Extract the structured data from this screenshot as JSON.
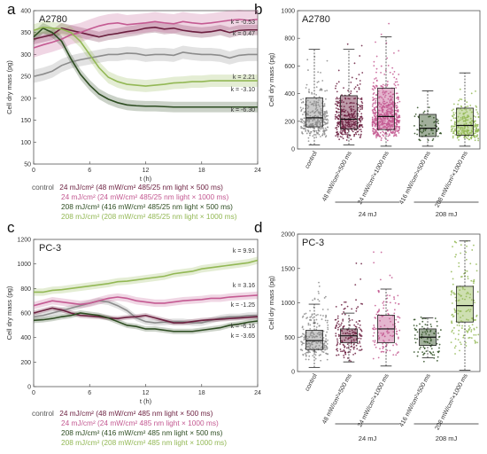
{
  "panels": {
    "a": "a",
    "b": "b",
    "c": "c",
    "d": "d"
  },
  "colors": {
    "control": "#8c8c8c",
    "s48": "#6b1f3f",
    "s24": "#c45a92",
    "s416": "#2e4d22",
    "s208": "#93b855"
  },
  "legend_a": {
    "control": "control",
    "s48": "24 mJ/cm² (48 mW/cm² 485/25 nm light × 500 ms)",
    "s24": "24 mJ/cm² (24 mW/cm² 485/25 nm light × 1000 ms)",
    "s416": "208 mJ/cm² (416 mW/cm² 485/25 nm light × 500 ms)",
    "s208": "208 mJ/cm² (208 mW/cm² 485/25 nm light × 1000 ms)"
  },
  "legend_c": {
    "control": "control",
    "s48": "24 mJ/cm² (48 mW/cm² 485 nm light × 500 ms)",
    "s24": "24 mJ/cm² (24 mW/cm² 485 nm light × 1000 ms)",
    "s416": "208 mJ/cm² (416 mW/cm² 485 nm light × 500 ms)",
    "s208": "208 mJ/cm² (208 mW/cm² 485 nm light × 1000 ms)"
  },
  "chart_data": [
    {
      "id": "a",
      "type": "line",
      "title": "A2780",
      "xlabel": "t (h)",
      "ylabel": "Cell dry mass (pg)",
      "xlim": [
        0,
        24
      ],
      "ylim": [
        50,
        400
      ],
      "xticks": [
        0,
        6,
        12,
        18,
        24
      ],
      "yticks": [
        50,
        100,
        150,
        200,
        250,
        300,
        350,
        400
      ],
      "series": [
        {
          "key": "control",
          "x": [
            0,
            1,
            2,
            3,
            4,
            5,
            6,
            7,
            8,
            9,
            10,
            11,
            12,
            13,
            14,
            15,
            16,
            17,
            18,
            19,
            20,
            21,
            22,
            23,
            24
          ],
          "values": [
            250,
            255,
            262,
            275,
            283,
            288,
            292,
            296,
            300,
            300,
            303,
            302,
            298,
            300,
            300,
            298,
            305,
            302,
            300,
            300,
            298,
            292,
            298,
            300,
            300
          ],
          "band": 15
        },
        {
          "key": "s48",
          "x": [
            0,
            1,
            2,
            3,
            4,
            5,
            6,
            7,
            8,
            9,
            10,
            11,
            12,
            13,
            14,
            15,
            16,
            17,
            18,
            19,
            20,
            21,
            22,
            23,
            24
          ],
          "values": [
            335,
            340,
            345,
            360,
            355,
            350,
            345,
            340,
            345,
            348,
            352,
            355,
            360,
            362,
            358,
            360,
            355,
            352,
            350,
            352,
            356,
            350,
            355,
            356,
            356
          ],
          "band": 12
        },
        {
          "key": "s24",
          "x": [
            0,
            1,
            2,
            3,
            4,
            5,
            6,
            7,
            8,
            9,
            10,
            11,
            12,
            13,
            14,
            15,
            16,
            17,
            18,
            19,
            20,
            21,
            22,
            23,
            24
          ],
          "values": [
            315,
            322,
            328,
            335,
            345,
            350,
            358,
            365,
            370,
            372,
            368,
            370,
            372,
            375,
            372,
            370,
            375,
            372,
            370,
            372,
            375,
            378,
            380,
            378,
            380
          ],
          "band": 22
        },
        {
          "key": "s416",
          "x": [
            0,
            1,
            2,
            3,
            4,
            5,
            6,
            7,
            8,
            9,
            10,
            11,
            12,
            13,
            14,
            15,
            16,
            17,
            18,
            19,
            20,
            21,
            22,
            23,
            24
          ],
          "values": [
            340,
            360,
            350,
            330,
            290,
            255,
            230,
            210,
            198,
            190,
            185,
            183,
            182,
            182,
            181,
            180,
            180,
            180,
            180,
            180,
            180,
            180,
            180,
            180,
            180
          ],
          "band": 12
        },
        {
          "key": "s208",
          "x": [
            0,
            1,
            2,
            3,
            4,
            5,
            6,
            7,
            8,
            9,
            10,
            11,
            12,
            13,
            14,
            15,
            16,
            17,
            18,
            19,
            20,
            21,
            22,
            23,
            24
          ],
          "values": [
            355,
            362,
            360,
            358,
            350,
            330,
            300,
            270,
            248,
            238,
            232,
            230,
            228,
            230,
            232,
            235,
            236,
            238,
            238,
            240,
            240,
            240,
            240,
            240,
            240
          ],
          "band": 14
        }
      ],
      "annotations": [
        {
          "text": "k = -0.53",
          "key": "s24"
        },
        {
          "text": "k = 0.47",
          "key": "s48"
        },
        {
          "text": "k = 2.21",
          "key": "control"
        },
        {
          "text": "k = -3.10",
          "key": "s208"
        },
        {
          "text": "k = -6.30",
          "key": "s416"
        }
      ]
    },
    {
      "id": "b",
      "type": "box",
      "title": "A2780",
      "ylabel": "Cell dry mass (pg)",
      "ylim": [
        0,
        1000
      ],
      "yticks": [
        0,
        200,
        400,
        600,
        800,
        1000
      ],
      "categories": [
        "control",
        "48 mW/cm²×500 ms",
        "24 mW/cm²×1000 ms",
        "416 mW/cm²×500 ms",
        "208 mW/cm²×1000 ms"
      ],
      "boxes": [
        {
          "key": "control",
          "whisker_low": 30,
          "q1": 160,
          "median": 225,
          "q3": 370,
          "whisker_high": 720,
          "n": 300,
          "spread": 680
        },
        {
          "key": "s48",
          "whisker_low": 30,
          "q1": 145,
          "median": 215,
          "q3": 385,
          "whisker_high": 720,
          "n": 350,
          "spread": 860
        },
        {
          "key": "s24",
          "whisker_low": 20,
          "q1": 140,
          "median": 235,
          "q3": 440,
          "whisker_high": 810,
          "n": 600,
          "spread": 920
        },
        {
          "key": "s416",
          "whisker_low": 20,
          "q1": 90,
          "median": 150,
          "q3": 250,
          "whisker_high": 420,
          "n": 60,
          "spread": 700
        },
        {
          "key": "s208",
          "whisker_low": 20,
          "q1": 100,
          "median": 170,
          "q3": 295,
          "whisker_high": 550,
          "n": 250,
          "spread": 900
        }
      ],
      "groups": [
        {
          "label": "24 mJ",
          "from": 1,
          "to": 2
        },
        {
          "label": "208 mJ",
          "from": 3,
          "to": 4
        }
      ]
    },
    {
      "id": "c",
      "type": "line",
      "title": "PC-3",
      "xlabel": "t (h)",
      "ylabel": "Cell dry mass (pg)",
      "xlim": [
        0,
        24
      ],
      "ylim": [
        0,
        1200
      ],
      "xticks": [
        0,
        6,
        12,
        18,
        24
      ],
      "yticks": [
        0,
        200,
        400,
        600,
        800,
        1000,
        1200
      ],
      "series": [
        {
          "key": "control",
          "x": [
            0,
            1,
            2,
            3,
            4,
            5,
            6,
            7,
            8,
            9,
            10,
            11,
            12,
            13,
            14,
            15,
            16,
            17,
            18,
            19,
            20,
            21,
            22,
            23,
            24
          ],
          "values": [
            570,
            580,
            600,
            620,
            640,
            660,
            680,
            700,
            690,
            660,
            620,
            560,
            530,
            520,
            525,
            530,
            530,
            520,
            520,
            540,
            560,
            570,
            570,
            580,
            580
          ],
          "band": 25
        },
        {
          "key": "s48",
          "x": [
            0,
            1,
            2,
            3,
            4,
            5,
            6,
            7,
            8,
            9,
            10,
            11,
            12,
            13,
            14,
            15,
            16,
            17,
            18,
            19,
            20,
            21,
            22,
            23,
            24
          ],
          "values": [
            600,
            620,
            640,
            625,
            600,
            580,
            575,
            570,
            560,
            555,
            565,
            570,
            580,
            560,
            540,
            520,
            520,
            530,
            540,
            545,
            550,
            555,
            560,
            565,
            570
          ],
          "band": 20
        },
        {
          "key": "s24",
          "x": [
            0,
            1,
            2,
            3,
            4,
            5,
            6,
            7,
            8,
            9,
            10,
            11,
            12,
            13,
            14,
            15,
            16,
            17,
            18,
            19,
            20,
            21,
            22,
            23,
            24
          ],
          "values": [
            660,
            680,
            700,
            690,
            680,
            670,
            680,
            700,
            720,
            730,
            720,
            700,
            690,
            680,
            680,
            690,
            700,
            705,
            710,
            720,
            720,
            730,
            735,
            740,
            745
          ],
          "band": 30
        },
        {
          "key": "s416",
          "x": [
            0,
            1,
            2,
            3,
            4,
            5,
            6,
            7,
            8,
            9,
            10,
            11,
            12,
            13,
            14,
            15,
            16,
            17,
            18,
            19,
            20,
            21,
            22,
            23,
            24
          ],
          "values": [
            540,
            545,
            555,
            570,
            580,
            600,
            590,
            580,
            560,
            530,
            500,
            490,
            470,
            470,
            460,
            450,
            450,
            450,
            460,
            470,
            480,
            500,
            510,
            525,
            535
          ],
          "band": 22
        },
        {
          "key": "s208",
          "x": [
            0,
            1,
            2,
            3,
            4,
            5,
            6,
            7,
            8,
            9,
            10,
            11,
            12,
            13,
            14,
            15,
            16,
            17,
            18,
            19,
            20,
            21,
            22,
            23,
            24
          ],
          "values": [
            770,
            770,
            785,
            790,
            800,
            810,
            820,
            830,
            840,
            855,
            860,
            870,
            880,
            890,
            900,
            920,
            930,
            940,
            960,
            970,
            980,
            990,
            1000,
            1010,
            1030
          ],
          "band": 30
        }
      ],
      "annotations": [
        {
          "text": "k = 9.91",
          "key": "s208"
        },
        {
          "text": "k = 3.16",
          "key": "s24"
        },
        {
          "text": "k = -1.25",
          "key": "s48"
        },
        {
          "text": "k = -6.16",
          "key": "control"
        },
        {
          "text": "k = -3.65",
          "key": "s416"
        }
      ]
    },
    {
      "id": "d",
      "type": "box",
      "title": "PC-3",
      "ylabel": "Cell dry mass (pg)",
      "ylim": [
        0,
        2000
      ],
      "yticks": [
        0,
        500,
        1000,
        1500,
        2000
      ],
      "categories": [
        "control",
        "48 mW/cm²×500 ms",
        "24 mW/cm²×1000 ms",
        "416 mW/cm²×500 ms",
        "208 mW/cm²×1000 ms"
      ],
      "boxes": [
        {
          "key": "control",
          "whisker_low": 60,
          "q1": 320,
          "median": 450,
          "q3": 600,
          "whisker_high": 980,
          "n": 230,
          "spread": 1400
        },
        {
          "key": "s48",
          "whisker_low": 140,
          "q1": 420,
          "median": 520,
          "q3": 620,
          "whisker_high": 850,
          "n": 170,
          "spread": 1600
        },
        {
          "key": "s24",
          "whisker_low": 80,
          "q1": 420,
          "median": 620,
          "q3": 820,
          "whisker_high": 1200,
          "n": 130,
          "spread": 1800
        },
        {
          "key": "s416",
          "whisker_low": 200,
          "q1": 380,
          "median": 500,
          "q3": 620,
          "whisker_high": 780,
          "n": 90,
          "spread": 800
        },
        {
          "key": "s208",
          "whisker_low": 20,
          "q1": 720,
          "median": 960,
          "q3": 1240,
          "whisker_high": 1900,
          "n": 160,
          "spread": 1950
        }
      ],
      "groups": [
        {
          "label": "24 mJ",
          "from": 1,
          "to": 2
        },
        {
          "label": "208 mJ",
          "from": 3,
          "to": 4
        }
      ]
    }
  ]
}
